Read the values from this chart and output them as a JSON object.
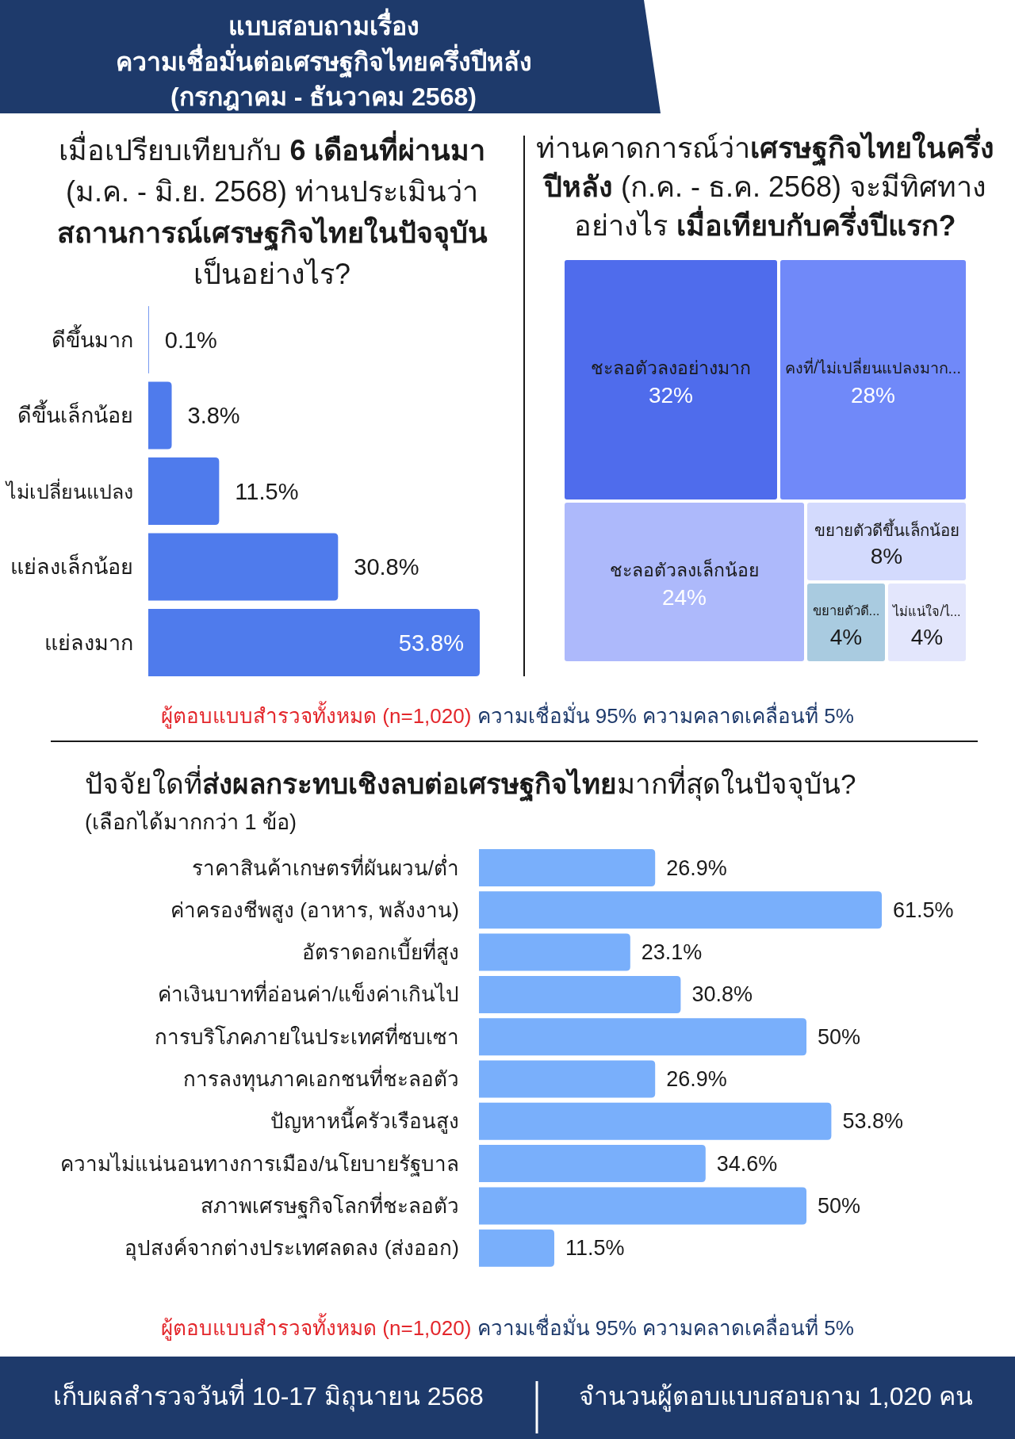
{
  "chart_data": [
    {
      "type": "other",
      "title": "แบบสอบถามเรื่อง\nความเชื่อมั่นต่อเศรษฐกิจไทยครึ่งปีหลัง\n(กรกฎาคม - ธันวาคม 2568)"
    },
    {
      "type": "bar",
      "orientation": "horizontal",
      "title": "เมื่อเปรียบเทียบกับ **6 เดือนที่ผ่านมา** (ม.ค. - มิ.ย. 2568) ท่านประเมินว่า **สถานการณ์เศรษฐกิจไทยในปัจจุบัน** เป็นอย่างไร?",
      "categories": [
        "ดีขึ้นมาก",
        "ดีขึ้นเล็กน้อย",
        "ไม่เปลี่ยนแปลง",
        "แย่ลงเล็กน้อย",
        "แย่ลงมาก"
      ],
      "values": [
        0.1,
        3.8,
        11.5,
        30.8,
        53.8
      ],
      "value_labels": [
        "0.1%",
        "3.8%",
        "11.5%",
        "30.8%",
        "53.8%"
      ],
      "color": "#4f7bec",
      "annotations": [
        "ผู้ตอบแบบสำรวจทั้งหมด (n=1,020)",
        "ความเชื่อมั่น 95% ความคลาดเคลื่อนที่ 5%"
      ]
    },
    {
      "type": "other",
      "title": "ท่านคาดการณ์ว่า**เศรษฐกิจไทยในครึ่งปีหลัง** (ก.ค. - ธ.ค. 2568) จะมีทิศทางอย่างไร **เมื่อเทียบกับครึ่งปีแรก?**",
      "categories": [
        "ชะลอตัวลงอย่างมาก",
        "คงที่/ไม่เปลี่ยนแปลงมาก...",
        "ชะลอตัวลงเล็กน้อย",
        "ขยายตัวดีขึ้นเล็กน้อย",
        "ขยายตัวดี...",
        "ไม่แน่ใจ/ไ..."
      ],
      "values": [
        32,
        28,
        24,
        8,
        4,
        4
      ],
      "value_labels": [
        "32%",
        "28%",
        "24%",
        "8%",
        "4%",
        "4%"
      ],
      "colors": [
        "#4f6cec",
        "#7089f9",
        "#adb9fb",
        "#d3dafd",
        "#a9cbe0",
        "#e3e6fc"
      ]
    },
    {
      "type": "bar",
      "orientation": "horizontal",
      "title": "ปัจจัยใดที่**ส่งผลกระทบเชิงลบต่อเศรษฐกิจไทย**มากที่สุดในปัจจุบัน?",
      "subtitle": "(เลือกได้มากกว่า 1 ข้อ)",
      "categories": [
        "ราคาสินค้าเกษตรที่ผันผวน/ต่ำ",
        "ค่าครองชีพสูง (อาหาร, พลังงาน)",
        "อัตราดอกเบี้ยที่สูง",
        "ค่าเงินบาทที่อ่อนค่า/แข็งค่าเกินไป",
        "การบริโภคภายในประเทศที่ซบเซา",
        "การลงทุนภาคเอกชนที่ชะลอตัว",
        "ปัญหาหนี้ครัวเรือนสูง",
        "ความไม่แน่นอนทางการเมือง/นโยบายรัฐบาล",
        "สภาพเศรษฐกิจโลกที่ชะลอตัว",
        "อุปสงค์จากต่างประเทศลดลง (ส่งออก)"
      ],
      "values": [
        26.9,
        61.5,
        23.1,
        30.8,
        50,
        26.9,
        53.8,
        34.6,
        50,
        11.5
      ],
      "value_labels": [
        "26.9%",
        "61.5%",
        "23.1%",
        "30.8%",
        "50%",
        "26.9%",
        "53.8%",
        "34.6%",
        "50%",
        "11.5%"
      ],
      "color": "#79affb",
      "annotations": [
        "ผู้ตอบแบบสำรวจทั้งหมด (n=1,020)",
        "ความเชื่อมั่น 95% ความคลาดเคลื่อนที่ 5%"
      ]
    },
    {
      "type": "other",
      "annotations": [
        "เก็บผลสำรวจวันที่ 10-17 มิถุนายน 2568",
        "จำนวนผู้ตอบแบบสอบถาม 1,020 คน"
      ]
    }
  ]
}
